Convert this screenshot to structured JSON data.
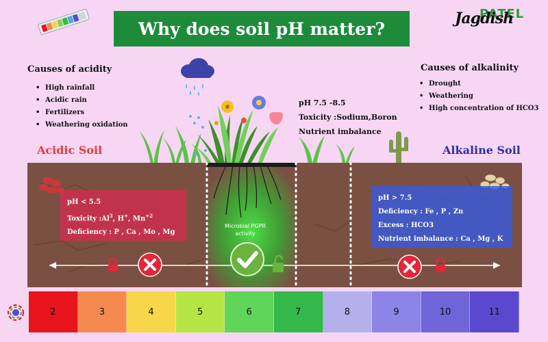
{
  "title": "Why does soil pH matter?",
  "brand": {
    "script": "Jagdish",
    "name": "PATEL"
  },
  "acidity": {
    "heading": "Causes of acidity",
    "items": [
      "High rainfall",
      "Acidic rain",
      "Fertilizers",
      "Weathering oxidation"
    ]
  },
  "alkalinity": {
    "heading": "Causes of alkalinity",
    "items": [
      "Drought",
      "Weathering",
      "High concentration of HCO3"
    ]
  },
  "neutral": {
    "ph": "pH 7.5 -8.5",
    "toxicity": "Toxicity :Sodium,Boron",
    "imbalance": "Nutrient imbalance"
  },
  "acidic_label": "Acidic Soil",
  "alkaline_label": "Alkaline Soil",
  "acid_box": {
    "ph": "pH  < 5.5",
    "toxicity_prefix": "Toxicity :Al",
    "al_sup": "3",
    "h_part": ", H",
    "h_sup": "+",
    "mn_part": ", Mn",
    "mn_sup": "+2",
    "deficiency": "Deficiency : P , Ca , Mo , Mg"
  },
  "alk_box": {
    "ph": "pH  > 7.5",
    "deficiency": "Deficiency : Fe ,  P ,  Zn",
    "excess": "Excess : HCO3",
    "imbalance": "Nutrient imbalance : Ca , Mg , K"
  },
  "pgpr_label": "Microbial PGPR activity",
  "scale": [
    {
      "value": "2",
      "color": "#e8141b"
    },
    {
      "value": "3",
      "color": "#f58a4f"
    },
    {
      "value": "4",
      "color": "#f7d74a"
    },
    {
      "value": "5",
      "color": "#b5e544"
    },
    {
      "value": "6",
      "color": "#5fd65a"
    },
    {
      "value": "7",
      "color": "#34b84a"
    },
    {
      "value": "8",
      "color": "#b3b0ec"
    },
    {
      "value": "9",
      "color": "#8c84e6"
    },
    {
      "value": "10",
      "color": "#7065d8"
    },
    {
      "value": "11",
      "color": "#5a48cf"
    }
  ],
  "colors": {
    "title_bg": "#1e8b3a",
    "acidic_text": "#e53a3a",
    "alkaline_text": "#2e2fa8",
    "soil": "#7a5043",
    "ok_green": "#6ab33e",
    "bad_red": "#e3263a"
  }
}
